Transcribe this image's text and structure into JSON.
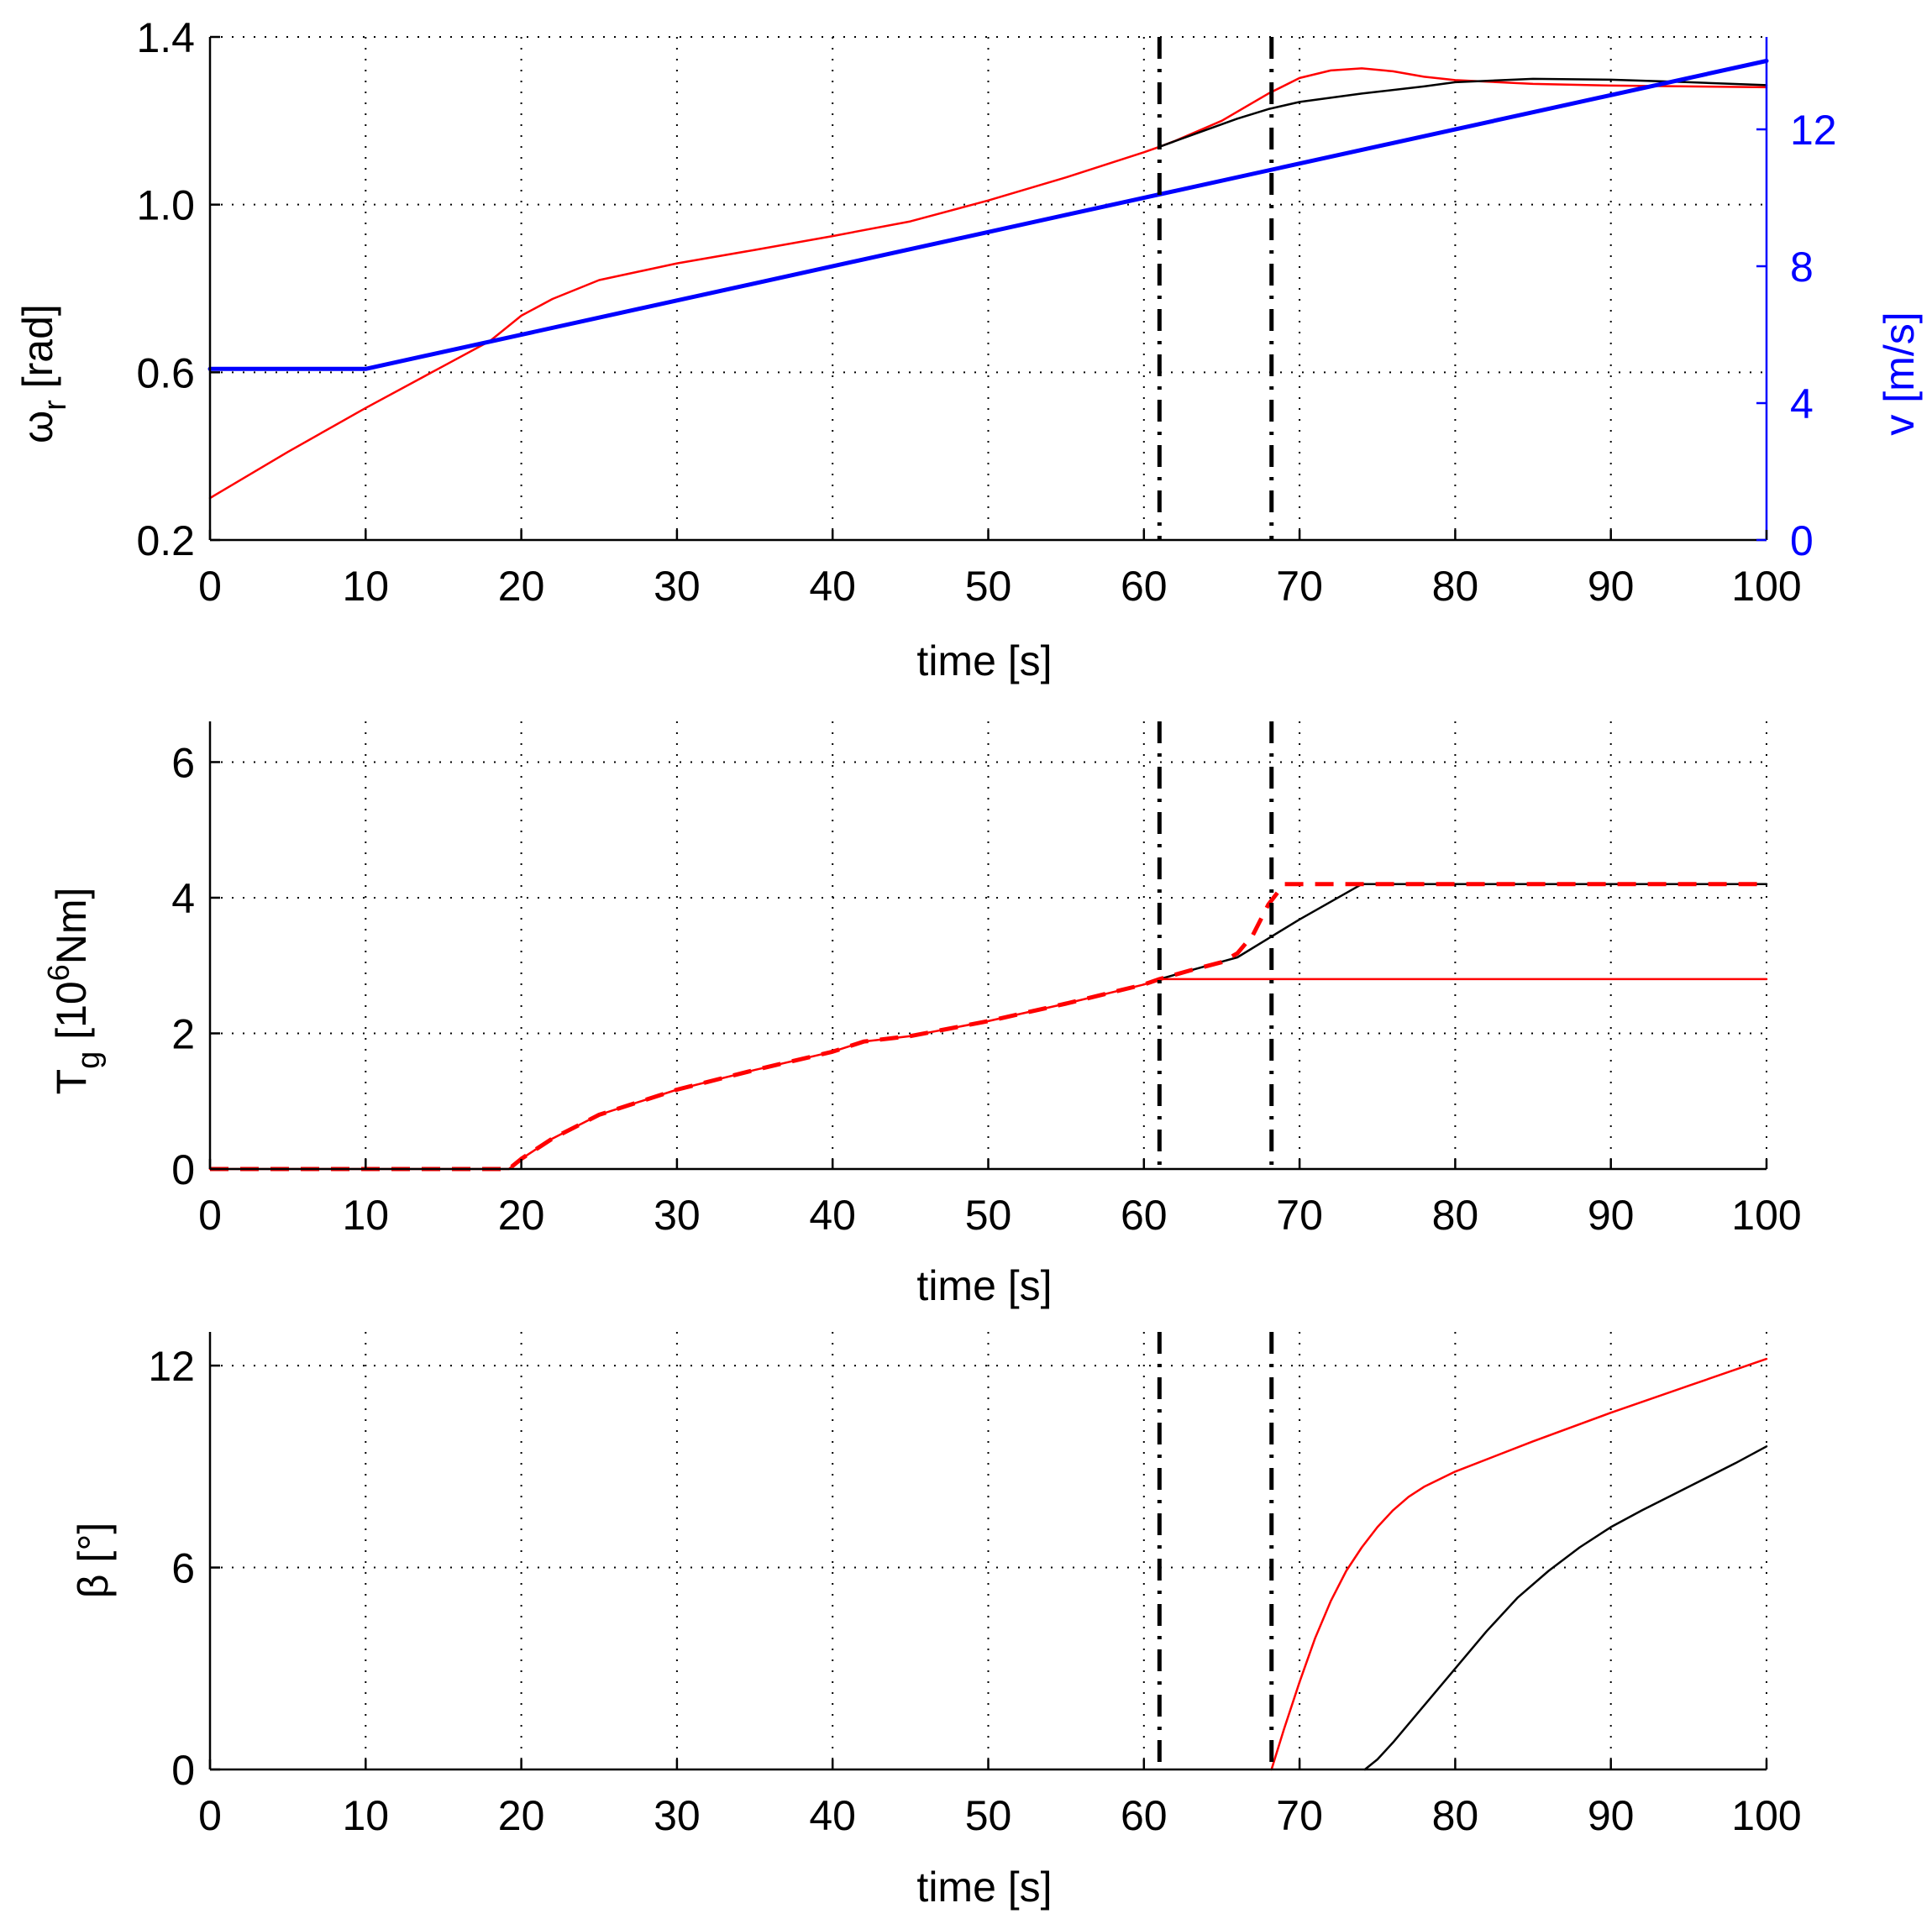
{
  "chart_data": [
    {
      "id": "omega",
      "type": "line",
      "xlabel": "time [s]",
      "ylabel": "ω_r [rad]",
      "ylabel_parts": {
        "base": "ω",
        "sub": "r",
        "rest": " [rad]"
      },
      "xlim": [
        0,
        100
      ],
      "ylim": [
        0.2,
        1.4
      ],
      "xticks": [
        0,
        10,
        20,
        30,
        40,
        50,
        60,
        70,
        80,
        90,
        100
      ],
      "yticks": [
        0.2,
        0.6,
        1.0,
        1.4
      ],
      "ytick_labels": [
        "0.2",
        "0.6",
        "1.0",
        "1.4"
      ],
      "grid": true,
      "vlines": [
        61,
        68.2
      ],
      "right_axis": {
        "label": "v [m/s]",
        "ylim": [
          0,
          14.7
        ],
        "yticks": [
          0,
          4,
          8,
          12
        ],
        "ytick_labels": [
          "0",
          "4",
          "8",
          "12"
        ],
        "color": "#0000ff"
      },
      "series": [
        {
          "name": "omega_red",
          "axis": "left",
          "color": "#ff0000",
          "style": "solid",
          "width": 2.5,
          "x": [
            0,
            5,
            10,
            15,
            18,
            20,
            22,
            25,
            30,
            35,
            40,
            45,
            50,
            55,
            60,
            61,
            62,
            65,
            68,
            70,
            72,
            74,
            76,
            78,
            80,
            85,
            90,
            95,
            100
          ],
          "y": [
            0.3,
            0.41,
            0.515,
            0.615,
            0.675,
            0.735,
            0.775,
            0.82,
            0.86,
            0.892,
            0.925,
            0.96,
            1.01,
            1.065,
            1.125,
            1.138,
            1.152,
            1.2,
            1.265,
            1.302,
            1.32,
            1.325,
            1.318,
            1.305,
            1.297,
            1.288,
            1.284,
            1.282,
            1.28
          ]
        },
        {
          "name": "omega_black",
          "axis": "left",
          "color": "#000000",
          "style": "solid",
          "width": 2.5,
          "x": [
            61,
            63,
            66,
            68,
            70,
            74,
            78,
            80,
            85,
            90,
            95,
            100
          ],
          "y": [
            1.138,
            1.165,
            1.205,
            1.228,
            1.245,
            1.265,
            1.282,
            1.292,
            1.3,
            1.298,
            1.292,
            1.285
          ]
        },
        {
          "name": "wind_speed",
          "axis": "right",
          "color": "#0000ff",
          "style": "solid",
          "width": 5,
          "x": [
            0,
            10,
            100
          ],
          "y": [
            5,
            5,
            14
          ]
        }
      ]
    },
    {
      "id": "torque",
      "type": "line",
      "xlabel": "time [s]",
      "ylabel": "T_g [10^6Nm]",
      "ylabel_parts": {
        "base": "T",
        "sub": "g",
        "mid": " [10",
        "sup": "6",
        "rest": "Nm]"
      },
      "xlim": [
        0,
        100
      ],
      "ylim": [
        0,
        6.6
      ],
      "xticks": [
        0,
        10,
        20,
        30,
        40,
        50,
        60,
        70,
        80,
        90,
        100
      ],
      "yticks": [
        0,
        2,
        4,
        6
      ],
      "ytick_labels": [
        "0",
        "2",
        "4",
        "6"
      ],
      "grid": true,
      "vlines": [
        61,
        68.2
      ],
      "series": [
        {
          "name": "torque_black",
          "color": "#000000",
          "style": "solid",
          "width": 2.5,
          "x": [
            61,
            63,
            66,
            68,
            70,
            74,
            100
          ],
          "y": [
            2.8,
            2.93,
            3.12,
            3.4,
            3.68,
            4.2,
            4.2
          ]
        },
        {
          "name": "torque_red_solid",
          "color": "#ff0000",
          "style": "solid",
          "width": 2.5,
          "x": [
            0,
            19.2,
            20,
            22,
            25,
            30,
            35,
            40,
            42,
            45,
            50,
            55,
            60,
            61,
            100
          ],
          "y": [
            0,
            0,
            0.15,
            0.45,
            0.8,
            1.17,
            1.46,
            1.73,
            1.88,
            1.96,
            2.18,
            2.44,
            2.72,
            2.8,
            2.8
          ]
        },
        {
          "name": "torque_red_dashed",
          "color": "#ff0000",
          "style": "dashed",
          "width": 5,
          "x": [
            0,
            19.2,
            20,
            22,
            25,
            30,
            35,
            40,
            42,
            45,
            50,
            55,
            60,
            61,
            63,
            65,
            66,
            67,
            68,
            69,
            100
          ],
          "y": [
            0,
            0,
            0.15,
            0.45,
            0.8,
            1.17,
            1.46,
            1.73,
            1.88,
            1.96,
            2.18,
            2.44,
            2.72,
            2.8,
            2.93,
            3.05,
            3.18,
            3.45,
            3.9,
            4.2,
            4.2
          ]
        }
      ]
    },
    {
      "id": "pitch",
      "type": "line",
      "xlabel": "time [s]",
      "ylabel": "β [°]",
      "xlim": [
        0,
        100
      ],
      "ylim": [
        0,
        13
      ],
      "xticks": [
        0,
        10,
        20,
        30,
        40,
        50,
        60,
        70,
        80,
        90,
        100
      ],
      "yticks": [
        0,
        6,
        12
      ],
      "ytick_labels": [
        "0",
        "6",
        "12"
      ],
      "grid": true,
      "vlines": [
        61,
        68.2
      ],
      "series": [
        {
          "name": "pitch_red",
          "color": "#ff0000",
          "style": "solid",
          "width": 2.5,
          "x": [
            68.2,
            69,
            70,
            71,
            72,
            73,
            74,
            75,
            76,
            77,
            78,
            80,
            85,
            90,
            95,
            100
          ],
          "y": [
            0,
            1.2,
            2.6,
            3.9,
            5.0,
            5.9,
            6.6,
            7.2,
            7.7,
            8.1,
            8.4,
            8.85,
            9.75,
            10.6,
            11.4,
            12.2
          ]
        },
        {
          "name": "pitch_black",
          "color": "#000000",
          "style": "solid",
          "width": 2.5,
          "x": [
            74.2,
            75,
            76,
            78,
            80,
            82,
            84,
            86,
            88,
            90,
            92,
            95,
            98,
            100
          ],
          "y": [
            0,
            0.3,
            0.8,
            1.9,
            3.0,
            4.1,
            5.1,
            5.9,
            6.6,
            7.2,
            7.7,
            8.4,
            9.1,
            9.6
          ]
        }
      ]
    }
  ]
}
